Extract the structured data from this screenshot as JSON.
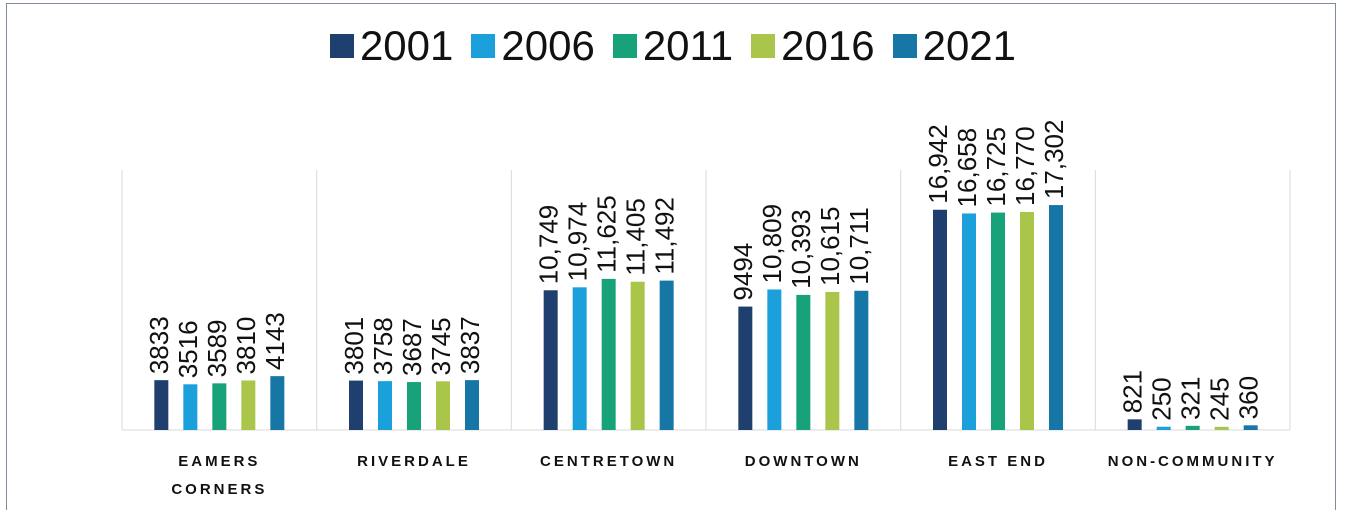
{
  "chart_data": {
    "type": "bar",
    "categories": [
      "EAMERS CORNERS",
      "RIVERDALE",
      "CENTRETOWN",
      "DOWNTOWN",
      "EAST END",
      "NON-COMMUNITY"
    ],
    "series": [
      {
        "name": "2001",
        "color": "#1f3f6e",
        "values": [
          3833,
          3801,
          10749,
          9494,
          16942,
          821
        ],
        "value_labels": [
          "3833",
          "3801",
          "10,749",
          "9494",
          "16,942",
          "821"
        ]
      },
      {
        "name": "2006",
        "color": "#1ca0dc",
        "values": [
          3516,
          3758,
          10974,
          10809,
          16658,
          250
        ],
        "value_labels": [
          "3516",
          "3758",
          "10,974",
          "10,809",
          "16,658",
          "250"
        ]
      },
      {
        "name": "2011",
        "color": "#17a27a",
        "values": [
          3589,
          3687,
          11625,
          10393,
          16725,
          321
        ],
        "value_labels": [
          "3589",
          "3687",
          "11,625",
          "10,393",
          "16,725",
          "321"
        ]
      },
      {
        "name": "2016",
        "color": "#a9c64a",
        "values": [
          3810,
          3745,
          11405,
          10615,
          16770,
          245
        ],
        "value_labels": [
          "3810",
          "3745",
          "11,405",
          "10,615",
          "16,770",
          "245"
        ]
      },
      {
        "name": "2021",
        "color": "#1677a6",
        "values": [
          4143,
          3837,
          11492,
          10711,
          17302,
          360
        ],
        "value_labels": [
          "4143",
          "3837",
          "11,492",
          "10,711",
          "17,302",
          "360"
        ]
      }
    ],
    "ylim": [
      0,
      30000
    ]
  }
}
